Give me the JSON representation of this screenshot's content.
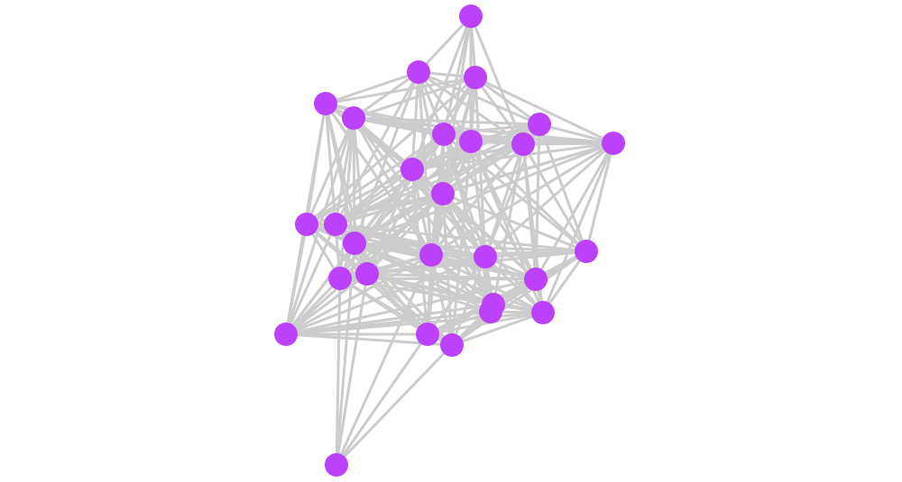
{
  "graph": {
    "type": "network",
    "node_color": "#bb41fb",
    "edge_color": "#cccccc",
    "node_count": 28,
    "edges": [
      "1-2",
      "1-3",
      "1-7",
      "1-8",
      "1-9",
      "1-11",
      "1-12",
      "2-3",
      "2-4",
      "2-5",
      "2-6",
      "2-7",
      "2-8",
      "2-9",
      "2-11",
      "2-12",
      "2-14",
      "2-15",
      "2-16",
      "3-4",
      "3-5",
      "3-6",
      "3-7",
      "3-8",
      "3-9",
      "3-10",
      "3-11",
      "3-12",
      "3-13",
      "3-16",
      "3-17",
      "4-5",
      "4-7",
      "4-8",
      "4-9",
      "4-11",
      "4-12",
      "4-13",
      "4-14",
      "4-15",
      "4-16",
      "4-20",
      "4-25",
      "5-6",
      "5-7",
      "5-8",
      "5-9",
      "5-10",
      "5-11",
      "5-12",
      "5-13",
      "5-14",
      "5-15",
      "5-16",
      "5-17",
      "5-19",
      "5-20",
      "5-21",
      "5-22",
      "5-25",
      "6-7",
      "6-8",
      "6-9",
      "6-10",
      "6-11",
      "6-12",
      "6-14",
      "6-15",
      "6-16",
      "6-17",
      "6-18",
      "6-21",
      "7-8",
      "7-9",
      "7-10",
      "7-11",
      "7-12",
      "7-13",
      "7-14",
      "7-15",
      "7-16",
      "7-17",
      "7-18",
      "7-19",
      "7-20",
      "7-21",
      "7-22",
      "7-26",
      "8-9",
      "8-10",
      "8-11",
      "8-12",
      "8-14",
      "8-15",
      "8-16",
      "8-17",
      "8-18",
      "8-20",
      "8-21",
      "8-24",
      "8-27",
      "9-10",
      "9-11",
      "9-12",
      "9-14",
      "9-15",
      "9-16",
      "9-17",
      "9-18",
      "9-21",
      "9-22",
      "9-24",
      "10-11",
      "10-12",
      "10-14",
      "10-15",
      "10-16",
      "10-17",
      "10-18",
      "10-21",
      "10-24",
      "11-12",
      "11-13",
      "11-14",
      "11-15",
      "11-16",
      "11-17",
      "11-19",
      "11-20",
      "11-21",
      "11-22",
      "11-25",
      "11-26",
      "12-13",
      "12-14",
      "12-15",
      "12-16",
      "12-17",
      "12-18",
      "12-19",
      "12-20",
      "12-21",
      "12-22",
      "12-23",
      "12-24",
      "12-25",
      "12-26",
      "12-27",
      "13-14",
      "13-15",
      "13-16",
      "13-17",
      "13-19",
      "13-20",
      "13-22",
      "13-25",
      "13-26",
      "14-15",
      "14-16",
      "14-17",
      "14-18",
      "14-19",
      "14-20",
      "14-21",
      "14-25",
      "14-26",
      "14-27",
      "15-16",
      "15-17",
      "15-18",
      "15-19",
      "15-20",
      "15-21",
      "15-22",
      "15-23",
      "15-24",
      "15-25",
      "15-26",
      "15-27",
      "15-28",
      "16-17",
      "16-18",
      "16-19",
      "16-20",
      "16-21",
      "16-22",
      "16-23",
      "16-24",
      "16-25",
      "16-26",
      "16-27",
      "16-28",
      "17-18",
      "17-19",
      "17-20",
      "17-21",
      "17-22",
      "17-23",
      "17-24",
      "17-25",
      "17-26",
      "17-27",
      "18-20",
      "18-21",
      "18-22",
      "18-23",
      "18-24",
      "18-26",
      "18-27",
      "19-20",
      "19-21",
      "19-22",
      "19-25",
      "19-26",
      "19-27",
      "19-28",
      "20-21",
      "20-22",
      "20-23",
      "20-24",
      "20-25",
      "20-26",
      "20-27",
      "20-28",
      "21-22",
      "21-23",
      "21-24",
      "21-25",
      "21-26",
      "21-27",
      "22-23",
      "22-24",
      "22-25",
      "22-26",
      "22-27",
      "23-24",
      "23-25",
      "23-26",
      "23-27",
      "24-25",
      "24-26",
      "24-27",
      "25-26",
      "25-27",
      "26-27",
      "26-28",
      "27-28"
    ]
  }
}
